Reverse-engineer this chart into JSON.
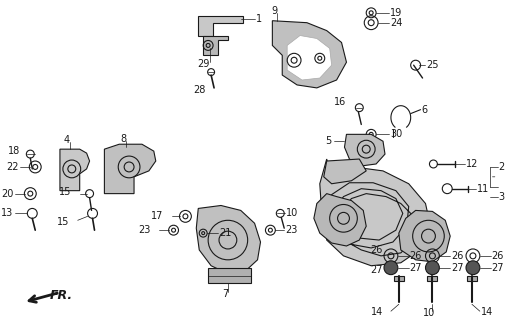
{
  "bg_color": "#ffffff",
  "line_color": "#1a1a1a",
  "lw": 0.8,
  "fig_w": 5.25,
  "fig_h": 3.2,
  "dpi": 100
}
